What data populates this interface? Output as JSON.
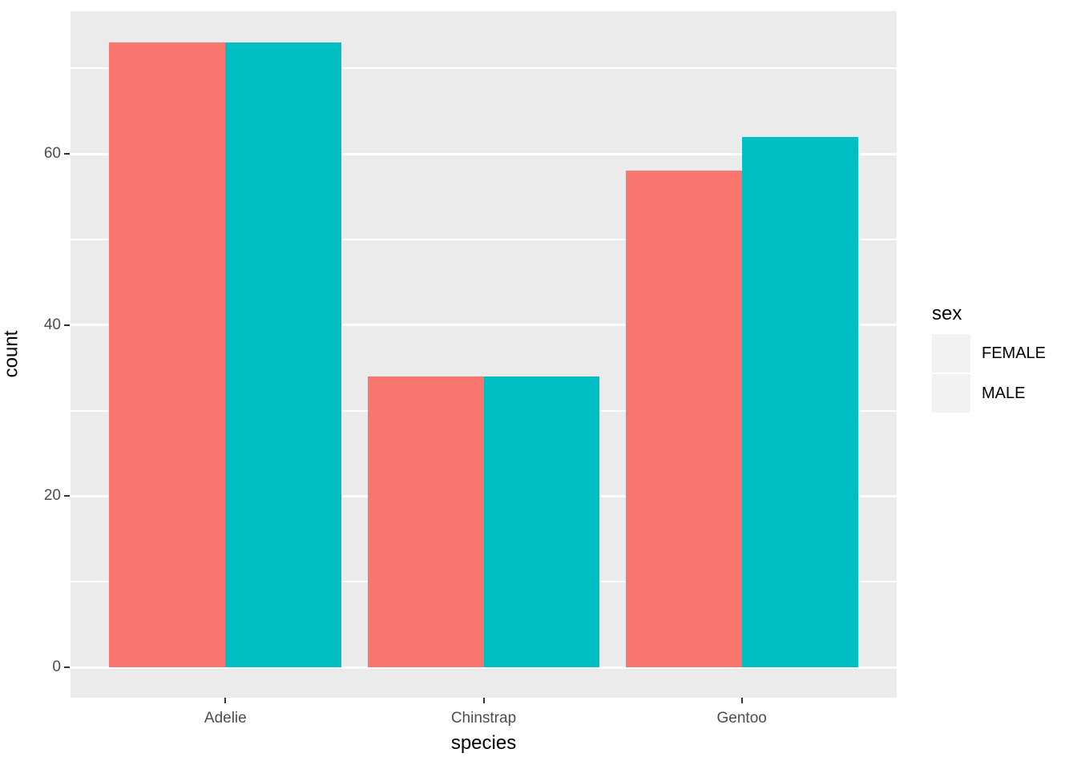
{
  "chart_data": {
    "type": "bar",
    "title": "",
    "xlabel": "species",
    "ylabel": "count",
    "categories": [
      "Adelie",
      "Chinstrap",
      "Gentoo"
    ],
    "series": [
      {
        "name": "FEMALE",
        "color": "#F8766D",
        "values": [
          73,
          34,
          58
        ]
      },
      {
        "name": "MALE",
        "color": "#00BFC4",
        "values": [
          73,
          34,
          62
        ]
      }
    ],
    "yticks": [
      0,
      20,
      40,
      60
    ],
    "ytick_labels": [
      "0",
      "20",
      "40",
      "60"
    ],
    "yticks_minor": [
      10,
      30,
      50,
      70
    ],
    "ylim": [
      -3.7,
      76.7
    ],
    "grid": true,
    "legend": {
      "title": "sex",
      "position": "right"
    },
    "theme": {
      "panel_background": "#EBEBEB",
      "grid_color": "#FFFFFF",
      "tick_label_color": "#4D4D4D",
      "tick_mark_color": "#333333",
      "axis_title_color": "#000000",
      "legend_key_background": "#F2F2F2"
    }
  }
}
